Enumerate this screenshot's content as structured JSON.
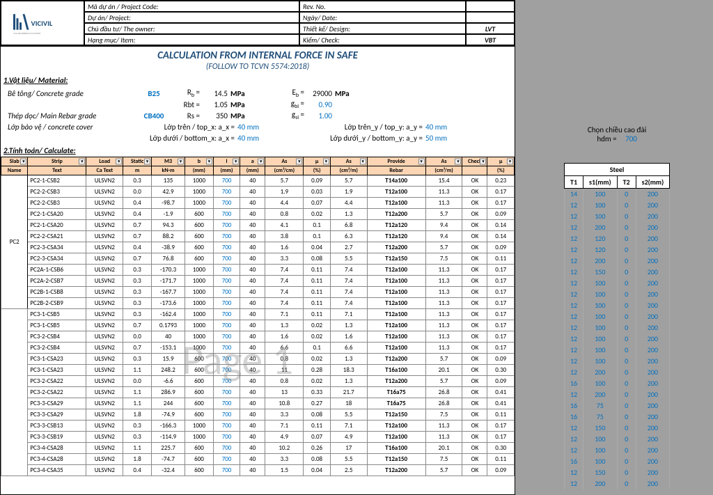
{
  "header": {
    "logo_text": "VICIVIL",
    "logo_sub": "CIVIL ENGINEERING DOCUMENT",
    "rows": [
      {
        "l": "Mã dự án / Project Code:",
        "r": "Rev. No.",
        "rv": ""
      },
      {
        "l": "Dự án/ Project:",
        "r": "Ngày/ Date:",
        "rv": ""
      },
      {
        "l": "Chủ đầu tư/ The owner:",
        "r": "Thiết kế/ Design:",
        "rv": "LVT"
      },
      {
        "l": "Hạng mục/ Item:",
        "r": "Kiểm/ Check:",
        "rv": "VBT"
      }
    ],
    "title": "CALCULATION FROM INTERNAL FORCE IN SAFE",
    "subtitle": "(FOLLOW TO TCVN 5574:2018)"
  },
  "material": {
    "section": "1.Vật liệu/ Material:",
    "concrete_label": "Bê tông/ Concrete grade",
    "concrete_grade": "B25",
    "Rb": "14.5",
    "Rbt": "1.05",
    "Eb": "29000",
    "gbi": "0.90",
    "rebar_label": "Thép dọc/ Main Rebar grade",
    "rebar_grade": "CB400",
    "Rs": "350",
    "gsi": "1.00",
    "cover_label": "Lớp bảo vệ / concrete cover",
    "topx_label": "Lớp trên / top_x:  a_x =",
    "topx": "40 mm",
    "botx_label": "Lớp dưới / bottom_x:  a_x =",
    "botx": "40 mm",
    "topy_label": "Lớp trên_y / top_y:  a_y =",
    "topy": "40 mm",
    "boty_label": "Lớp dưới_y / bottom_y:  a_y =",
    "boty": "50 mm"
  },
  "calc": {
    "section": "2.Tính toán/ Calculate:",
    "columns": [
      "Slab Name",
      "Strip Text",
      "Load Ca Text",
      "Static m",
      "M3 kN-m",
      "b (mm)",
      "l (mm)",
      "a (mm)",
      "As (cm²/cm)",
      "μ (%)",
      "As (cm²/m)",
      "Provide Rebar",
      "As (cm²/m)",
      "Check",
      "μ (%)"
    ]
  },
  "rows": [
    {
      "g": "PC2",
      "gs": 1,
      "gspan": 11,
      "s": "PC2-1-CSB2",
      "lc": "ULSVN2",
      "st": "0.3",
      "m": "135",
      "b": "1000",
      "l": "700",
      "a": "40",
      "as1": "5.7",
      "mu": "0.09",
      "as2": "5.7",
      "pr": "T14a100",
      "asp": "15.4",
      "ck": "OK",
      "mu2": "0.23"
    },
    {
      "g": "",
      "s": "PC2-2-CSB3",
      "lc": "ULSVN2",
      "st": "0.0",
      "m": "42.9",
      "b": "1000",
      "l": "700",
      "a": "40",
      "as1": "1.9",
      "mu": "0.03",
      "as2": "1.9",
      "pr": "T12a100",
      "asp": "11.3",
      "ck": "OK",
      "mu2": "0.17"
    },
    {
      "g": "",
      "s": "PC2-2-CSB3",
      "lc": "ULSVN2",
      "st": "0.4",
      "m": "-98.7",
      "b": "1000",
      "l": "700",
      "a": "40",
      "as1": "4.4",
      "mu": "0.07",
      "as2": "4.4",
      "pr": "T12a100",
      "asp": "11.3",
      "ck": "OK",
      "mu2": "0.17"
    },
    {
      "g": "",
      "s": "PC2-1-CSA20",
      "lc": "ULSVN2",
      "st": "0.4",
      "m": "-1.9",
      "b": "600",
      "l": "700",
      "a": "40",
      "as1": "0.8",
      "mu": "0.02",
      "as2": "1.3",
      "pr": "T12a200",
      "asp": "5.7",
      "ck": "OK",
      "mu2": "0.09"
    },
    {
      "g": "",
      "s": "PC2-1-CSA20",
      "lc": "ULSVN2",
      "st": "0.7",
      "m": "94.3",
      "b": "600",
      "l": "700",
      "a": "40",
      "as1": "4.1",
      "mu": "0.1",
      "as2": "6.8",
      "pr": "T12a120",
      "asp": "9.4",
      "ck": "OK",
      "mu2": "0.14"
    },
    {
      "g": "",
      "s": "PC2-2-CSA21",
      "lc": "ULSVN2",
      "st": "0.7",
      "m": "88.2",
      "b": "600",
      "l": "700",
      "a": "40",
      "as1": "3.8",
      "mu": "0.1",
      "as2": "6.3",
      "pr": "T12a120",
      "asp": "9.4",
      "ck": "OK",
      "mu2": "0.14"
    },
    {
      "g": "",
      "s": "PC2-3-CSA34",
      "lc": "ULSVN2",
      "st": "0.4",
      "m": "-38.9",
      "b": "600",
      "l": "700",
      "a": "40",
      "as1": "1.6",
      "mu": "0.04",
      "as2": "2.7",
      "pr": "T12a200",
      "asp": "5.7",
      "ck": "OK",
      "mu2": "0.09"
    },
    {
      "g": "",
      "s": "PC2-3-CSA34",
      "lc": "ULSVN2",
      "st": "0.7",
      "m": "76.8",
      "b": "600",
      "l": "700",
      "a": "40",
      "as1": "3.3",
      "mu": "0.08",
      "as2": "5.5",
      "pr": "T12a150",
      "asp": "7.5",
      "ck": "OK",
      "mu2": "0.11"
    },
    {
      "g": "",
      "s": "PC2A-1-CSB6",
      "lc": "ULSVN2",
      "st": "0.3",
      "m": "-170.3",
      "b": "1000",
      "l": "700",
      "a": "40",
      "as1": "7.4",
      "mu": "0.11",
      "as2": "7.4",
      "pr": "T12a100",
      "asp": "11.3",
      "ck": "OK",
      "mu2": "0.17"
    },
    {
      "g": "",
      "s": "PC2A-2-CSB7",
      "lc": "ULSVN2",
      "st": "0.3",
      "m": "-171.7",
      "b": "1000",
      "l": "700",
      "a": "40",
      "as1": "7.4",
      "mu": "0.11",
      "as2": "7.4",
      "pr": "T12a100",
      "asp": "11.3",
      "ck": "OK",
      "mu2": "0.17"
    },
    {
      "g": "",
      "s": "PC2B-1-CSB8",
      "lc": "ULSVN2",
      "st": "0.3",
      "m": "-167.7",
      "b": "1000",
      "l": "700",
      "a": "40",
      "as1": "7.4",
      "mu": "0.11",
      "as2": "7.4",
      "pr": "T12a100",
      "asp": "11.3",
      "ck": "OK",
      "mu2": "0.17"
    },
    {
      "g": "",
      "gs": 2,
      "s": "PC2B-2-CSB9",
      "lc": "ULSVN2",
      "st": "0.3",
      "m": "-173.6",
      "b": "1000",
      "l": "700",
      "a": "40",
      "as1": "7.4",
      "mu": "0.11",
      "as2": "7.4",
      "pr": "T12a100",
      "asp": "11.3",
      "ck": "OK",
      "mu2": "0.17"
    },
    {
      "g": "",
      "gs": 1,
      "gspan": 0,
      "s": "PC3-1-CSB5",
      "lc": "ULSVN2",
      "st": "0.3",
      "m": "-162.4",
      "b": "1000",
      "l": "700",
      "a": "40",
      "as1": "7.1",
      "mu": "0.11",
      "as2": "7.1",
      "pr": "T12a100",
      "asp": "11.3",
      "ck": "OK",
      "mu2": "0.17"
    },
    {
      "g": "",
      "s": "PC3-1-CSB5",
      "lc": "ULSVN2",
      "st": "0.7",
      "m": "0.1793",
      "b": "1000",
      "l": "700",
      "a": "40",
      "as1": "1.3",
      "mu": "0.02",
      "as2": "1.3",
      "pr": "T12a100",
      "asp": "11.3",
      "ck": "OK",
      "mu2": "0.17"
    },
    {
      "g": "",
      "s": "PC3-2-CSB4",
      "lc": "ULSVN2",
      "st": "0.0",
      "m": "40",
      "b": "1000",
      "l": "700",
      "a": "40",
      "as1": "1.6",
      "mu": "0.02",
      "as2": "1.6",
      "pr": "T12a100",
      "asp": "11.3",
      "ck": "OK",
      "mu2": "0.17"
    },
    {
      "g": "",
      "s": "PC3-2-CSB4",
      "lc": "ULSVN2",
      "st": "0.7",
      "m": "-153.1",
      "b": "1000",
      "l": "700",
      "a": "40",
      "as1": "6.6",
      "mu": "0.1",
      "as2": "6.6",
      "pr": "T12a100",
      "asp": "11.3",
      "ck": "OK",
      "mu2": "0.17"
    },
    {
      "g": "",
      "s": "PC3-1-CSA23",
      "lc": "ULSVN2",
      "st": "0.3",
      "m": "15.9",
      "b": "600",
      "l": "700",
      "a": "40",
      "as1": "0.8",
      "mu": "0.02",
      "as2": "1.3",
      "pr": "T12a200",
      "asp": "5.7",
      "ck": "OK",
      "mu2": "0.09"
    },
    {
      "g": "",
      "s": "PC3-1-CSA23",
      "lc": "ULSVN2",
      "st": "1.1",
      "m": "248.2",
      "b": "600",
      "l": "700",
      "a": "40",
      "as1": "11",
      "mu": "0.28",
      "as2": "18.3",
      "pr": "T16a100",
      "asp": "20.1",
      "ck": "OK",
      "mu2": "0.30"
    },
    {
      "g": "",
      "s": "PC3-2-CSA22",
      "lc": "ULSVN2",
      "st": "0.0",
      "m": "-6.6",
      "b": "600",
      "l": "700",
      "a": "40",
      "as1": "0.8",
      "mu": "0.02",
      "as2": "1.3",
      "pr": "T12a200",
      "asp": "5.7",
      "ck": "OK",
      "mu2": "0.09"
    },
    {
      "g": "",
      "s": "PC3-2-CSA22",
      "lc": "ULSVN2",
      "st": "1.1",
      "m": "286.9",
      "b": "600",
      "l": "700",
      "a": "40",
      "as1": "13",
      "mu": "0.33",
      "as2": "21.7",
      "pr": "T16a75",
      "asp": "26.8",
      "ck": "OK",
      "mu2": "0.41"
    },
    {
      "g": "",
      "s": "PC3-3-CSA29",
      "lc": "ULSVN2",
      "st": "1.1",
      "m": "244",
      "b": "600",
      "l": "700",
      "a": "40",
      "as1": "10.8",
      "mu": "0.27",
      "as2": "18",
      "pr": "T16a75",
      "asp": "26.8",
      "ck": "OK",
      "mu2": "0.41"
    },
    {
      "g": "",
      "s": "PC3-3-CSA29",
      "lc": "ULSVN2",
      "st": "1.8",
      "m": "-74.9",
      "b": "600",
      "l": "700",
      "a": "40",
      "as1": "3.3",
      "mu": "0.08",
      "as2": "5.5",
      "pr": "T12a150",
      "asp": "7.5",
      "ck": "OK",
      "mu2": "0.11"
    },
    {
      "g": "",
      "s": "PC3-3-CSB13",
      "lc": "ULSVN2",
      "st": "0.3",
      "m": "-166.3",
      "b": "1000",
      "l": "700",
      "a": "40",
      "as1": "7.1",
      "mu": "0.11",
      "as2": "7.1",
      "pr": "T12a100",
      "asp": "11.3",
      "ck": "OK",
      "mu2": "0.17"
    },
    {
      "g": "",
      "s": "PC3-3-CSB19",
      "lc": "ULSVN2",
      "st": "0.3",
      "m": "-114.9",
      "b": "1000",
      "l": "700",
      "a": "40",
      "as1": "4.9",
      "mu": "0.07",
      "as2": "4.9",
      "pr": "T12a100",
      "asp": "11.3",
      "ck": "OK",
      "mu2": "0.17"
    },
    {
      "g": "",
      "s": "PC3-4-CSA28",
      "lc": "ULSVN2",
      "st": "1.1",
      "m": "225.7",
      "b": "600",
      "l": "700",
      "a": "40",
      "as1": "10.2",
      "mu": "0.26",
      "as2": "17",
      "pr": "T16a100",
      "asp": "20.1",
      "ck": "OK",
      "mu2": "0.30"
    },
    {
      "g": "",
      "s": "PC3-4-CSA28",
      "lc": "ULSVN2",
      "st": "1.8",
      "m": "-74.7",
      "b": "600",
      "l": "700",
      "a": "40",
      "as1": "3.3",
      "mu": "0.08",
      "as2": "5.5",
      "pr": "T12a150",
      "asp": "7.5",
      "ck": "OK",
      "mu2": "0.11"
    },
    {
      "g": "",
      "s": "PC3-4-CSA35",
      "lc": "ULSVN2",
      "st": "0.4",
      "m": "-32.4",
      "b": "600",
      "l": "700",
      "a": "40",
      "as1": "1.5",
      "mu": "0.04",
      "as2": "2.5",
      "pr": "T12a200",
      "asp": "5.7",
      "ck": "OK",
      "mu2": "0.09"
    }
  ],
  "side": {
    "label": "Chọn chiều cao đài",
    "hdm_label": "hdm =",
    "hdm": "700",
    "steel_title": "Steel",
    "steel_cols": [
      "T1",
      "s1(mm)",
      "T2",
      "s2(mm)"
    ],
    "steel_rows": [
      [
        "14",
        "100",
        "0",
        "200"
      ],
      [
        "12",
        "100",
        "0",
        "200"
      ],
      [
        "12",
        "100",
        "0",
        "200"
      ],
      [
        "12",
        "200",
        "0",
        "200"
      ],
      [
        "12",
        "120",
        "0",
        "200"
      ],
      [
        "12",
        "120",
        "0",
        "200"
      ],
      [
        "12",
        "200",
        "0",
        "200"
      ],
      [
        "12",
        "150",
        "0",
        "200"
      ],
      [
        "12",
        "100",
        "0",
        "200"
      ],
      [
        "12",
        "100",
        "0",
        "200"
      ],
      [
        "12",
        "100",
        "0",
        "200"
      ],
      [
        "12",
        "100",
        "0",
        "200"
      ],
      [
        "12",
        "100",
        "0",
        "200"
      ],
      [
        "12",
        "100",
        "0",
        "200"
      ],
      [
        "12",
        "100",
        "0",
        "200"
      ],
      [
        "12",
        "100",
        "0",
        "200"
      ],
      [
        "12",
        "200",
        "0",
        "200"
      ],
      [
        "16",
        "100",
        "0",
        "200"
      ],
      [
        "12",
        "200",
        "0",
        "200"
      ],
      [
        "16",
        "75",
        "0",
        "200"
      ],
      [
        "16",
        "75",
        "0",
        "200"
      ],
      [
        "12",
        "150",
        "0",
        "200"
      ],
      [
        "12",
        "100",
        "0",
        "200"
      ],
      [
        "12",
        "100",
        "0",
        "200"
      ],
      [
        "16",
        "100",
        "0",
        "200"
      ],
      [
        "12",
        "150",
        "0",
        "200"
      ],
      [
        "12",
        "200",
        "0",
        "200"
      ]
    ]
  },
  "watermark": "Page 1"
}
